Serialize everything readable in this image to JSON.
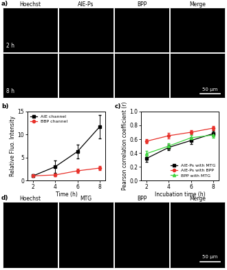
{
  "panel_a": {
    "label": "a)",
    "columns": [
      "Hoechst",
      "AIE-Ps",
      "BPP",
      "Merge"
    ],
    "rows": [
      "2 h",
      "8 h"
    ],
    "scale_bar": "50 μm"
  },
  "chart_data": [
    {
      "type": "line",
      "title": "b)",
      "x_label": "Time (h)",
      "y_label": "Relative Fluo. Intensity",
      "x": [
        2,
        4,
        6,
        8
      ],
      "xlim": [
        1.5,
        8.5
      ],
      "xticks": [
        2,
        4,
        6,
        8
      ],
      "ylim": [
        0,
        15
      ],
      "yticks": [
        0,
        5,
        10,
        15
      ],
      "legend": "upper left",
      "series": [
        {
          "name": "AIE channel",
          "color": "#000000",
          "marker": "square",
          "values": [
            1.0,
            3.0,
            6.3,
            11.7
          ],
          "errors": [
            0.3,
            1.3,
            1.5,
            2.5
          ]
        },
        {
          "name": "BBP channel",
          "color": "#e8312a",
          "marker": "circle",
          "values": [
            1.0,
            1.2,
            2.1,
            2.7
          ],
          "errors": [
            0.2,
            0.3,
            0.5,
            0.5
          ]
        }
      ]
    },
    {
      "type": "line",
      "title": "c)",
      "x_label": "Incubation time (h)",
      "y_label": "Pearson correlation coefficient (r)",
      "x": [
        2,
        4,
        6,
        8
      ],
      "xlim": [
        1.5,
        8.5
      ],
      "xticks": [
        2,
        4,
        6,
        8
      ],
      "ylim": [
        0.0,
        1.0
      ],
      "yticks": [
        0.0,
        0.2,
        0.4,
        0.6,
        0.8,
        1.0
      ],
      "legend": "lower right",
      "series": [
        {
          "name": "AIE-Ps with MTG",
          "color": "#000000",
          "marker": "square",
          "values": [
            0.32,
            0.48,
            0.58,
            0.68
          ],
          "errors": [
            0.05,
            0.04,
            0.05,
            0.04
          ]
        },
        {
          "name": "AIE-Ps with BPP",
          "color": "#e8312a",
          "marker": "circle",
          "values": [
            0.57,
            0.65,
            0.7,
            0.76
          ],
          "errors": [
            0.03,
            0.04,
            0.03,
            0.03
          ]
        },
        {
          "name": "BPP with MTG",
          "color": "#3fd63f",
          "marker": "triangle",
          "values": [
            0.39,
            0.5,
            0.62,
            0.66
          ],
          "errors": [
            0.04,
            0.04,
            0.04,
            0.04
          ]
        }
      ]
    }
  ],
  "panel_d": {
    "label": "d)",
    "columns": [
      "Hoechst",
      "MTG",
      "BPP",
      "Merge"
    ],
    "scale_bar": "50 μm"
  }
}
